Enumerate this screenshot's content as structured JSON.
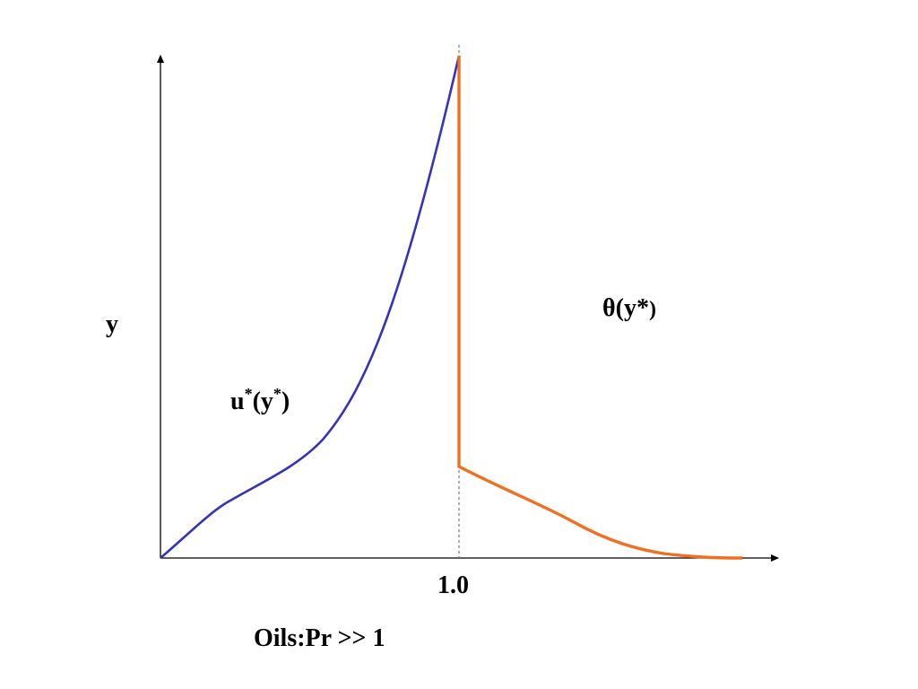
{
  "diagram": {
    "y_axis_label": "y",
    "x_tick_label": "1.0",
    "caption": "Oils:Pr >> 1",
    "velocity_label": {
      "base": "u",
      "sup1": "*",
      "paren_open": "(y",
      "sup2": "*",
      "paren_close": ")"
    },
    "temperature_label": {
      "text": "θ(y*",
      "close": ")"
    },
    "colors": {
      "axis": "#000000",
      "velocity_curve": "#3333bb",
      "temperature_curve": "#f07020",
      "reference_line": "#777777"
    }
  }
}
